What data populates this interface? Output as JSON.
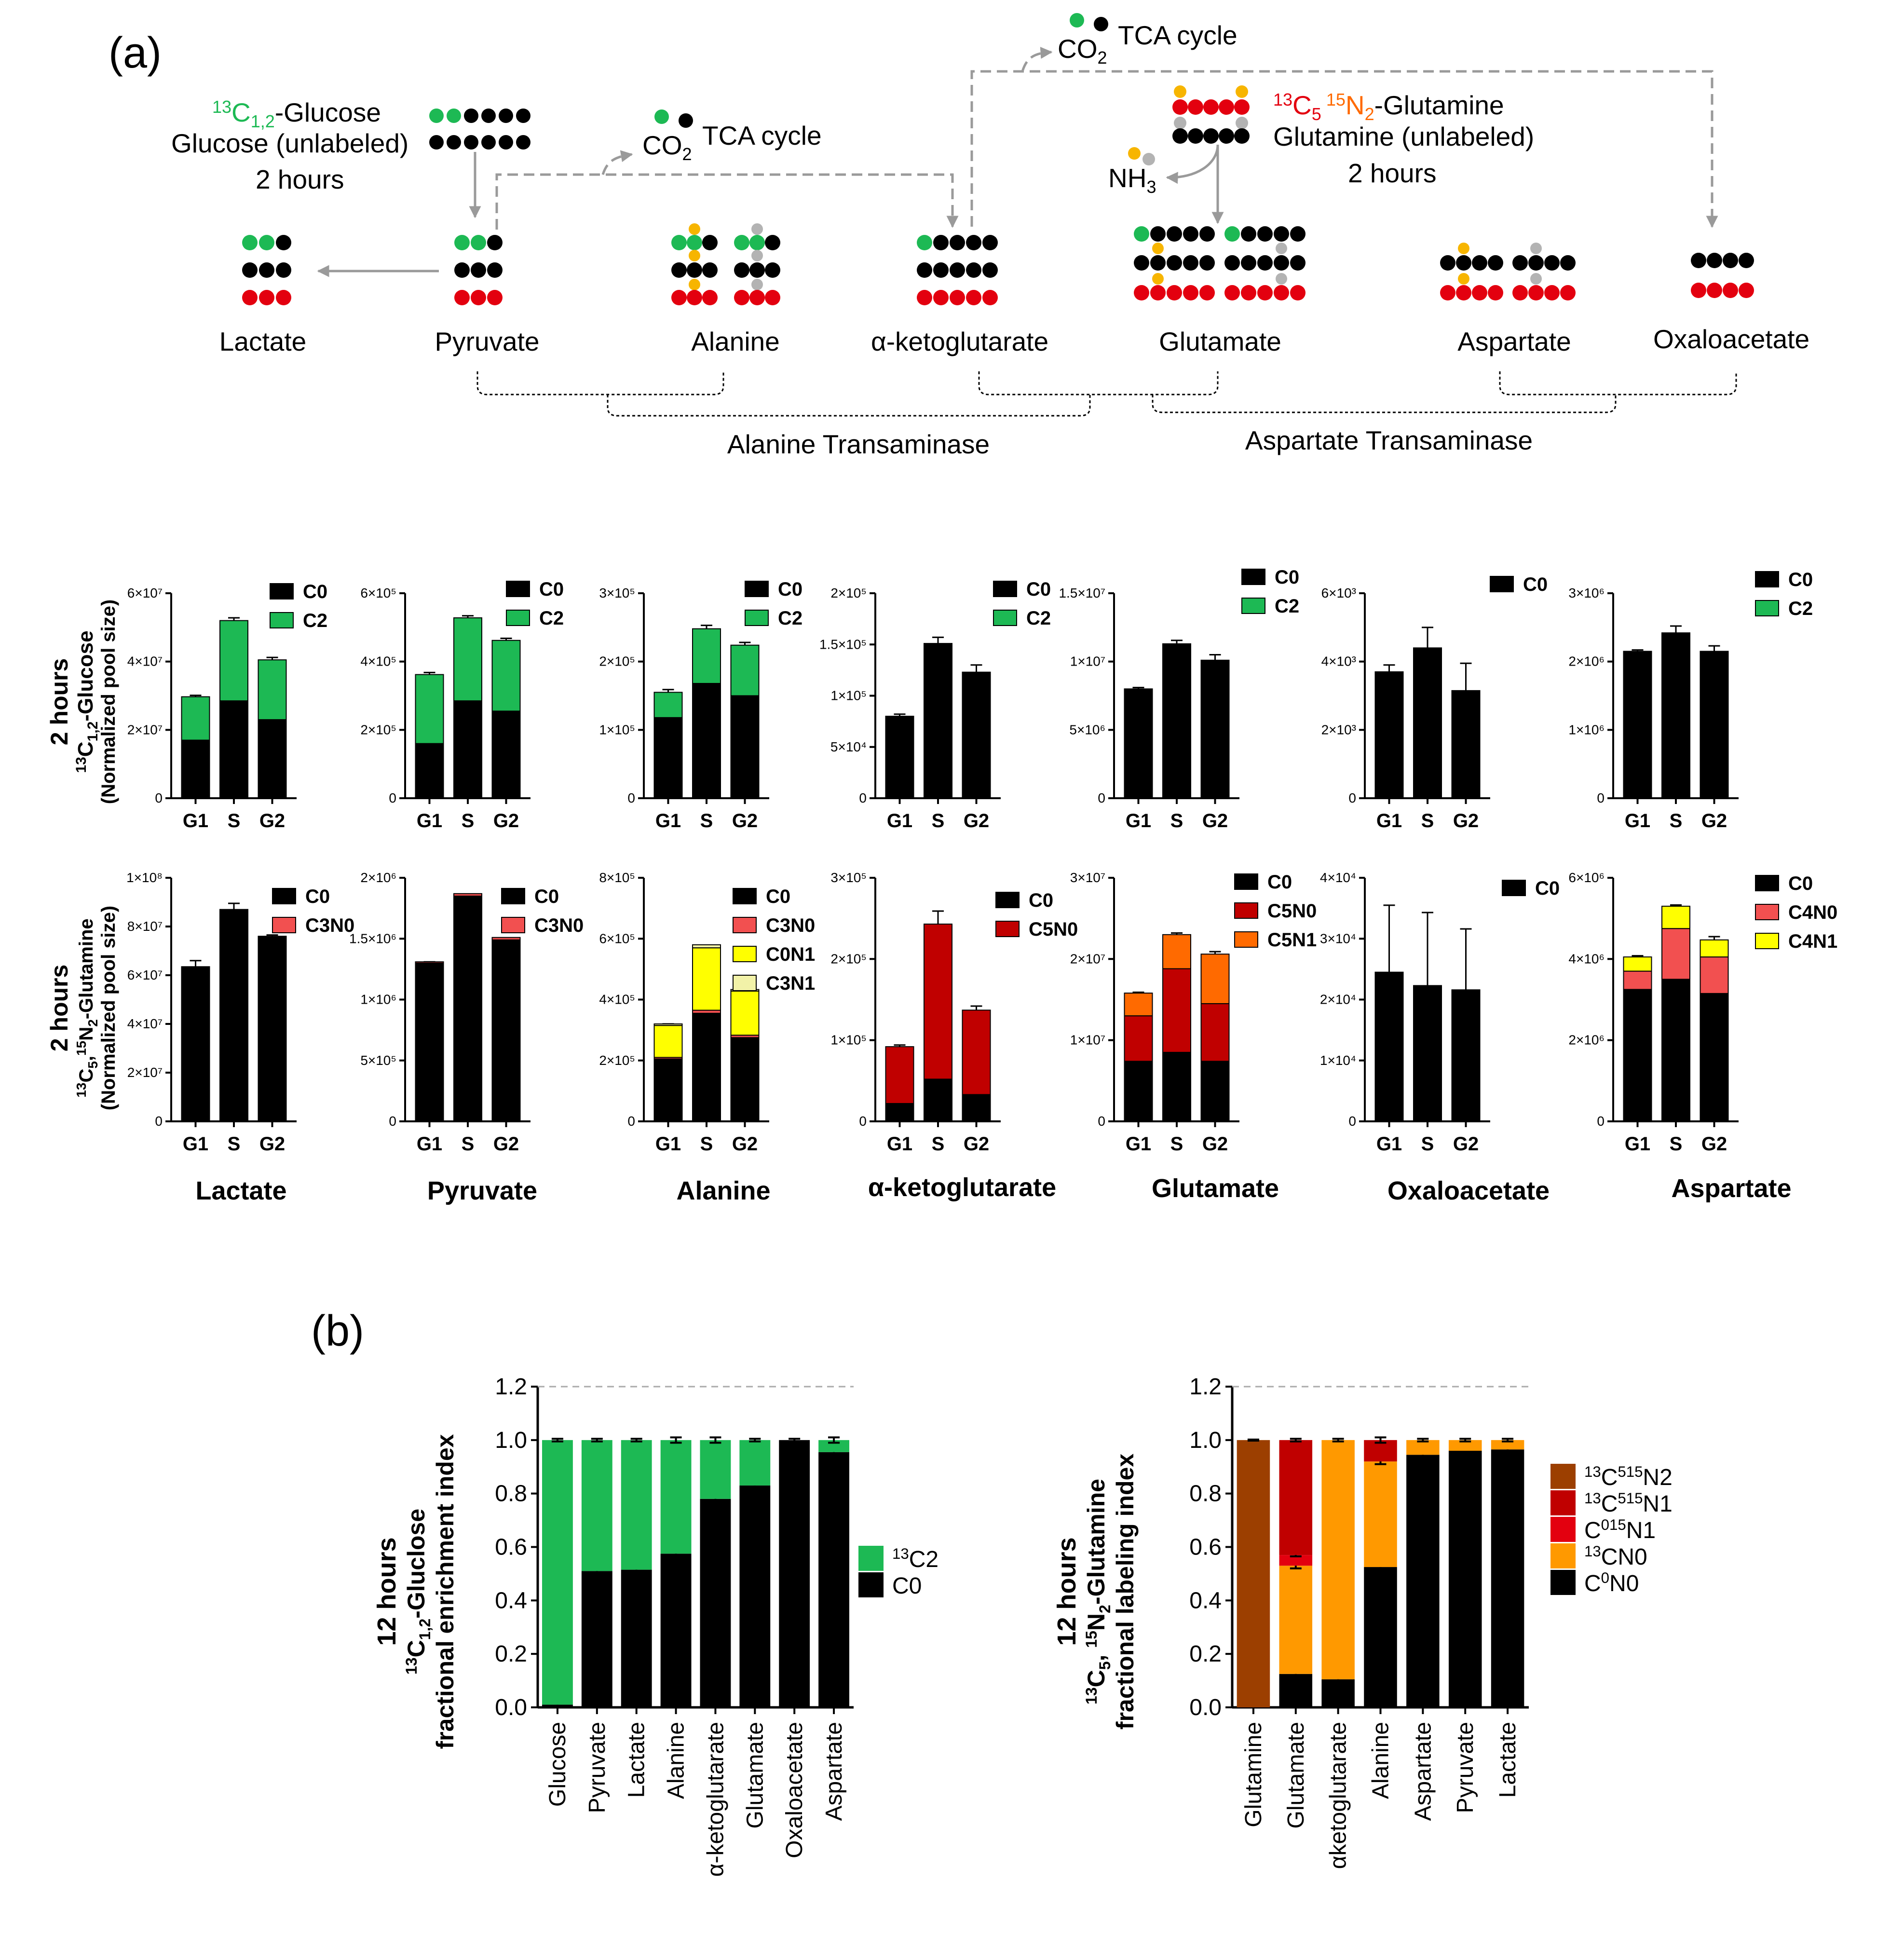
{
  "colors": {
    "black": "#000000",
    "green": "#1db954",
    "red": "#e3000f",
    "gold": "#f7b500",
    "grey": "#b3b3b3",
    "arrow": "#9a9a9a",
    "c3n0": "#f25050",
    "c5n0": "#c00000",
    "c5n1": "#ff6a00",
    "yellow": "#ffff00",
    "paleyellow": "#f2f2a8",
    "orange": "#ff9900",
    "brown": "#9c3f00"
  },
  "panel_a": {
    "label": "(a)",
    "glucose_tracer": "13C1,2-Glucose",
    "glucose_unlabeled": "Glucose (unlabeled)",
    "glucose_time": "2 hours",
    "glutamine_tracer": "13C5 15N2-Glutamine",
    "glutamine_unlabeled": "Glutamine (unlabeled)",
    "glutamine_time": "2 hours",
    "co2": "CO2",
    "tca": "TCA cycle",
    "nh3": "NH3",
    "metabolites": [
      "Lactate",
      "Pyruvate",
      "Alanine",
      "α-ketoglutarate",
      "Glutamate",
      "Aspartate",
      "Oxaloacetate"
    ],
    "alt": "Alanine Transaminase",
    "ast": "Aspartate Transaminase",
    "row1_label": [
      "2 hours",
      "13C1,2-Glucose",
      "(Normalized pool size)"
    ],
    "row2_label": [
      "2 hours",
      "13C5,15N2-Glutamine",
      "(Normalized pool size)"
    ],
    "col_titles": [
      "Lactate",
      "Pyruvate",
      "Alanine",
      "α-ketoglutarate",
      "Glutamate",
      "Oxaloacetate",
      "Aspartate"
    ]
  },
  "chart_data": [
    {
      "type": "bar",
      "stacked": true,
      "panel": "glucose-lactate",
      "categories": [
        "G1",
        "S",
        "G2"
      ],
      "ylim": [
        0,
        60000000
      ],
      "yticks": [
        "0",
        "2×10⁷",
        "4×10⁷",
        "6×10⁷"
      ],
      "series": [
        {
          "name": "C0",
          "color": "black",
          "values": [
            17000000,
            28500000,
            23000000
          ],
          "err": [
            500000,
            600000,
            600000
          ]
        },
        {
          "name": "C2",
          "color": "green",
          "values": [
            12700000,
            23500000,
            17500000
          ],
          "err": [
            400000,
            800000,
            700000
          ]
        }
      ]
    },
    {
      "type": "bar",
      "stacked": true,
      "panel": "glucose-pyruvate",
      "categories": [
        "G1",
        "S",
        "G2"
      ],
      "ylim": [
        0,
        600000
      ],
      "yticks": [
        "0",
        "2×10⁵",
        "4×10⁵",
        "6×10⁵"
      ],
      "series": [
        {
          "name": "C0",
          "color": "black",
          "values": [
            160000,
            285000,
            255000
          ],
          "err": [
            5000,
            6000,
            8000
          ]
        },
        {
          "name": "C2",
          "color": "green",
          "values": [
            202000,
            243000,
            207000
          ],
          "err": [
            6000,
            6000,
            6000
          ]
        }
      ]
    },
    {
      "type": "bar",
      "stacked": true,
      "panel": "glucose-alanine",
      "categories": [
        "G1",
        "S",
        "G2"
      ],
      "ylim": [
        0,
        300000
      ],
      "yticks": [
        "0",
        "1×10⁵",
        "2×10⁵",
        "3×10⁵"
      ],
      "series": [
        {
          "name": "C0",
          "color": "black",
          "values": [
            118000,
            168000,
            150000
          ],
          "err": [
            6000,
            5000,
            7000
          ]
        },
        {
          "name": "C2",
          "color": "green",
          "values": [
            37000,
            80000,
            74000
          ],
          "err": [
            4000,
            5000,
            4000
          ]
        }
      ]
    },
    {
      "type": "bar",
      "stacked": true,
      "panel": "glucose-aketoglutarate",
      "categories": [
        "G1",
        "S",
        "G2"
      ],
      "ylim": [
        0,
        200000
      ],
      "yticks": [
        "0",
        "5×10⁴",
        "1×10⁵",
        "1.5×10⁵",
        "2×10⁵"
      ],
      "ytick_values": [
        0,
        50000,
        100000,
        150000,
        200000
      ],
      "series": [
        {
          "name": "C0",
          "color": "black",
          "values": [
            80000,
            151000,
            123000
          ],
          "err": [
            2000,
            6000,
            7000
          ]
        },
        {
          "name": "C2",
          "color": "green",
          "values": [
            0,
            0,
            0
          ],
          "err": [
            0,
            0,
            0
          ]
        }
      ]
    },
    {
      "type": "bar",
      "stacked": true,
      "panel": "glucose-glutamate",
      "categories": [
        "G1",
        "S",
        "G2"
      ],
      "ylim": [
        0,
        15000000
      ],
      "yticks": [
        "0",
        "5×10⁶",
        "1×10⁷",
        "1.5×10⁷"
      ],
      "series": [
        {
          "name": "C0",
          "color": "black",
          "values": [
            8000000,
            11300000,
            10100000
          ],
          "err": [
            100000,
            250000,
            400000
          ]
        },
        {
          "name": "C2",
          "color": "green",
          "values": [
            0,
            0,
            0
          ],
          "err": [
            0,
            0,
            0
          ]
        }
      ]
    },
    {
      "type": "bar",
      "stacked": true,
      "panel": "glucose-oxaloacetate",
      "categories": [
        "G1",
        "S",
        "G2"
      ],
      "ylim": [
        0,
        6000
      ],
      "yticks": [
        "0",
        "2×10³",
        "4×10³",
        "6×10³"
      ],
      "series": [
        {
          "name": "C0",
          "color": "black",
          "values": [
            3700,
            4400,
            3150
          ],
          "err": [
            200,
            600,
            800
          ]
        }
      ]
    },
    {
      "type": "bar",
      "stacked": true,
      "panel": "glucose-aspartate",
      "categories": [
        "G1",
        "S",
        "G2"
      ],
      "ylim": [
        0,
        3000000
      ],
      "yticks": [
        "0",
        "1×10⁶",
        "2×10⁶",
        "3×10⁶"
      ],
      "series": [
        {
          "name": "C0",
          "color": "black",
          "values": [
            2150000,
            2420000,
            2150000
          ],
          "err": [
            20000,
            100000,
            80000
          ]
        },
        {
          "name": "C2",
          "color": "green",
          "values": [
            0,
            0,
            0
          ],
          "err": [
            0,
            0,
            0
          ]
        }
      ]
    },
    {
      "type": "bar",
      "stacked": true,
      "panel": "glutamine-lactate",
      "categories": [
        "G1",
        "S",
        "G2"
      ],
      "ylim": [
        0,
        100000000
      ],
      "yticks": [
        "0",
        "2×10⁷",
        "4×10⁷",
        "6×10⁷",
        "8×10⁷",
        "1×10⁸"
      ],
      "series": [
        {
          "name": "C0",
          "color": "black",
          "values": [
            63500000,
            87000000,
            76000000
          ],
          "err": [
            2500000,
            2500000,
            500000
          ]
        },
        {
          "name": "C3N0",
          "color": "c3n0",
          "values": [
            0,
            0,
            0
          ],
          "err": [
            0,
            0,
            0
          ]
        }
      ]
    },
    {
      "type": "bar",
      "stacked": true,
      "panel": "glutamine-pyruvate",
      "categories": [
        "G1",
        "S",
        "G2"
      ],
      "ylim": [
        0,
        2000000
      ],
      "yticks": [
        "0",
        "5×10⁵",
        "1×10⁶",
        "1.5×10⁶",
        "2×10⁶"
      ],
      "series": [
        {
          "name": "C0",
          "color": "black",
          "values": [
            1300000,
            1850000,
            1490000
          ],
          "err": [
            10000,
            15000,
            10000
          ]
        },
        {
          "name": "C3N0",
          "color": "c3n0",
          "values": [
            10000,
            20000,
            20000
          ],
          "err": [
            0,
            0,
            0
          ]
        }
      ]
    },
    {
      "type": "bar",
      "stacked": true,
      "panel": "glutamine-alanine",
      "categories": [
        "G1",
        "S",
        "G2"
      ],
      "ylim": [
        0,
        800000
      ],
      "yticks": [
        "0",
        "2×10⁵",
        "4×10⁵",
        "6×10⁵",
        "8×10⁵"
      ],
      "series": [
        {
          "name": "C0",
          "color": "black",
          "values": [
            205000,
            355000,
            275000
          ],
          "err": [
            8000,
            10000,
            8000
          ]
        },
        {
          "name": "C3N0",
          "color": "c3n0",
          "values": [
            5000,
            10000,
            8000
          ],
          "err": [
            0,
            0,
            0
          ]
        },
        {
          "name": "C0N1",
          "color": "yellow",
          "values": [
            105000,
            205000,
            145000
          ],
          "err": [
            5000,
            8000,
            6000
          ]
        },
        {
          "name": "C3N1",
          "color": "paleyellow",
          "values": [
            5000,
            10000,
            5000
          ],
          "err": [
            0,
            0,
            0
          ]
        }
      ]
    },
    {
      "type": "bar",
      "stacked": true,
      "panel": "glutamine-aketoglutarate",
      "categories": [
        "G1",
        "S",
        "G2"
      ],
      "ylim": [
        0,
        300000
      ],
      "yticks": [
        "0",
        "1×10⁵",
        "2×10⁵",
        "3×10⁵"
      ],
      "series": [
        {
          "name": "C0",
          "color": "black",
          "values": [
            22000,
            52000,
            33000
          ],
          "err": [
            2000,
            2000,
            3000
          ]
        },
        {
          "name": "C5N0",
          "color": "c5n0",
          "values": [
            70000,
            191000,
            104000
          ],
          "err": [
            2000,
            16000,
            5000
          ]
        }
      ]
    },
    {
      "type": "bar",
      "stacked": true,
      "panel": "glutamine-glutamate",
      "categories": [
        "G1",
        "S",
        "G2"
      ],
      "ylim": [
        0,
        30000000
      ],
      "yticks": [
        "0",
        "1×10⁷",
        "2×10⁷",
        "3×10⁷"
      ],
      "series": [
        {
          "name": "C0",
          "color": "black",
          "values": [
            7400000,
            8500000,
            7400000
          ],
          "err": [
            200000,
            200000,
            300000
          ]
        },
        {
          "name": "C5N0",
          "color": "c5n0",
          "values": [
            5600000,
            10300000,
            7100000
          ],
          "err": [
            300000,
            300000,
            800000
          ]
        },
        {
          "name": "C5N1",
          "color": "c5n1",
          "values": [
            2800000,
            4200000,
            6100000
          ],
          "err": [
            100000,
            200000,
            300000
          ]
        }
      ]
    },
    {
      "type": "bar",
      "stacked": true,
      "panel": "glutamine-oxaloacetate",
      "categories": [
        "G1",
        "S",
        "G2"
      ],
      "ylim": [
        0,
        40000
      ],
      "yticks": [
        "0",
        "1×10⁴",
        "2×10⁴",
        "3×10⁴",
        "4×10⁴"
      ],
      "series": [
        {
          "name": "C0",
          "color": "black",
          "values": [
            24500,
            22300,
            21600
          ],
          "err": [
            11000,
            12000,
            10000
          ]
        }
      ]
    },
    {
      "type": "bar",
      "stacked": true,
      "panel": "glutamine-aspartate",
      "categories": [
        "G1",
        "S",
        "G2"
      ],
      "ylim": [
        0,
        6000000
      ],
      "yticks": [
        "0",
        "2×10⁶",
        "4×10⁶",
        "6×10⁶"
      ],
      "series": [
        {
          "name": "C0",
          "color": "black",
          "values": [
            3250000,
            3500000,
            3150000
          ],
          "err": [
            200000,
            200000,
            550000
          ]
        },
        {
          "name": "C4N0",
          "color": "c3n0",
          "values": [
            450000,
            1250000,
            900000
          ],
          "err": [
            100000,
            100000,
            300000
          ]
        },
        {
          "name": "C4N1",
          "color": "yellow",
          "values": [
            350000,
            550000,
            420000
          ],
          "err": [
            30000,
            30000,
            80000
          ]
        }
      ]
    },
    {
      "type": "bar",
      "stacked": true,
      "panel": "b-glucose",
      "label": "(b)",
      "ylabel": [
        "12 hours",
        "13C1,2-Gluclose",
        "fractional enrichment index"
      ],
      "categories": [
        "Glucose",
        "Pyruvate",
        "Lactate",
        "Alanine",
        "α-ketoglutarate",
        "Glutamate",
        "Oxaloacetate",
        "Aspartate"
      ],
      "ylim": [
        0,
        1.2
      ],
      "yticks": [
        "0.0",
        "0.2",
        "0.4",
        "0.6",
        "0.8",
        "1.0",
        "1.2"
      ],
      "ytick_values": [
        0,
        0.2,
        0.4,
        0.6,
        0.8,
        1.0,
        1.2
      ],
      "series": [
        {
          "name": "C0",
          "color": "black",
          "values": [
            0.01,
            0.51,
            0.515,
            0.575,
            0.78,
            0.83,
            1.0,
            0.955
          ],
          "err": [
            0.005,
            0.005,
            0.005,
            0.01,
            0.01,
            0.005,
            0.005,
            0.01
          ]
        },
        {
          "name": "13C2",
          "color": "green",
          "values": [
            0.99,
            0.49,
            0.485,
            0.425,
            0.22,
            0.17,
            0.0,
            0.045
          ],
          "err": [
            0.005,
            0.005,
            0.005,
            0.01,
            0.01,
            0.005,
            0.0,
            0.01
          ]
        }
      ]
    },
    {
      "type": "bar",
      "stacked": true,
      "panel": "b-glutamine",
      "ylabel": [
        "12 hours",
        "13C5, 15N2-Glutamine",
        "fractional labeling index"
      ],
      "categories": [
        "Glutamine",
        "Glutamate",
        "αketoglutarate",
        "Alanine",
        "Aspartate",
        "Pyruvate",
        "Lactate"
      ],
      "ylim": [
        0,
        1.2
      ],
      "yticks": [
        "0.0",
        "0.2",
        "0.4",
        "0.6",
        "0.8",
        "1.0",
        "1.2"
      ],
      "ytick_values": [
        0,
        0.2,
        0.4,
        0.6,
        0.8,
        1.0,
        1.2
      ],
      "series": [
        {
          "name": "C0N0",
          "color": "black",
          "values": [
            0.0,
            0.125,
            0.105,
            0.525,
            0.945,
            0.96,
            0.965
          ],
          "err": [
            0,
            0.005,
            0.005,
            0.01,
            0.01,
            0.005,
            0.005
          ]
        },
        {
          "name": "13CN0",
          "color": "orange",
          "values": [
            0.0,
            0.405,
            0.895,
            0.395,
            0.055,
            0.04,
            0.035
          ],
          "err": [
            0,
            0.01,
            0.005,
            0.01,
            0.005,
            0.005,
            0.005
          ]
        },
        {
          "name": "C015N1",
          "color": "red",
          "values": [
            0.0,
            0.04,
            0.0,
            0.0,
            0.0,
            0.0,
            0.0
          ],
          "err": [
            0,
            0.005,
            0,
            0,
            0,
            0,
            0
          ]
        },
        {
          "name": "13C515N1",
          "color": "c5n0",
          "values": [
            0.0,
            0.43,
            0.0,
            0.08,
            0.0,
            0.0,
            0.0
          ],
          "err": [
            0,
            0.005,
            0,
            0.01,
            0,
            0,
            0
          ]
        },
        {
          "name": "13C515N2",
          "color": "brown",
          "values": [
            1.0,
            0.0,
            0.0,
            0.0,
            0.0,
            0.0,
            0.0
          ],
          "err": [
            0.002,
            0,
            0,
            0,
            0,
            0,
            0
          ]
        }
      ]
    }
  ],
  "legend_b_glucose": [
    "13C2",
    "C0"
  ],
  "legend_b_glutamine": [
    "13C515N2",
    "13C515N1",
    "C015N1",
    "13CN0",
    "C0N0"
  ]
}
